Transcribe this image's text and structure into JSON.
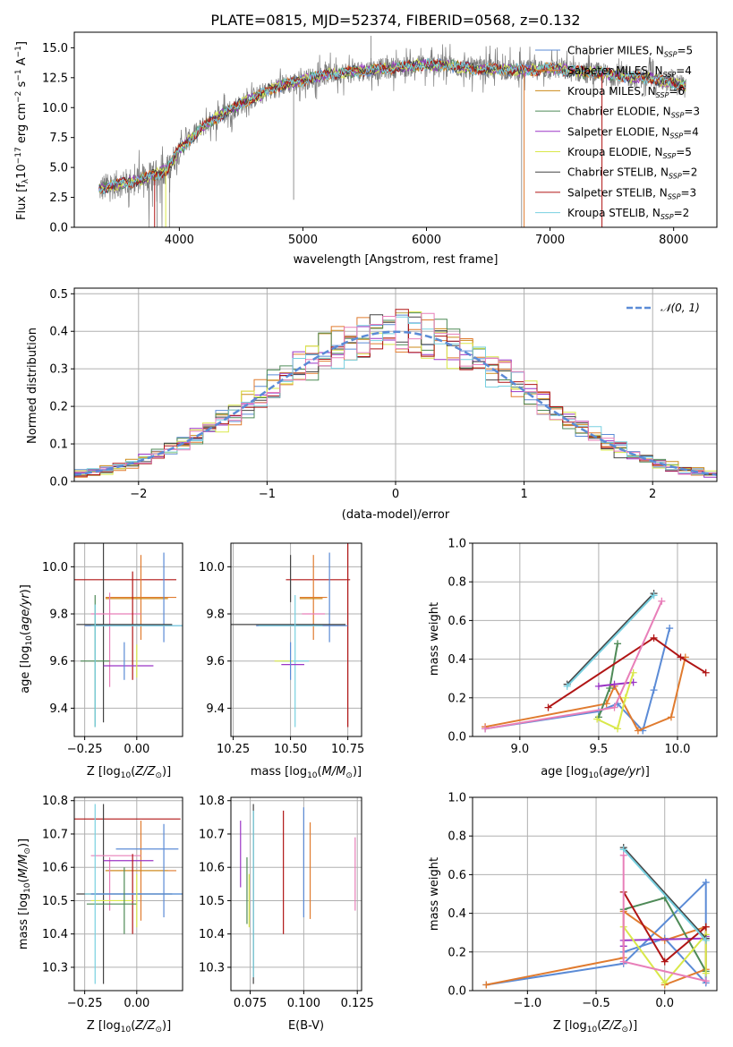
{
  "colors": {
    "Chabrier MILES": "#5b8bd6",
    "Salpeter MILES": "#e07b2f",
    "Kroupa MILES": "#cc8a1a",
    "Chabrier ELODIE": "#4e8a57",
    "Salpeter ELODIE": "#9b35c5",
    "Kroupa ELODIE": "#d9e84a",
    "Chabrier STELIB": "#444444",
    "Salpeter STELIB": "#b01515",
    "Kroupa STELIB": "#78d0e0",
    "pink": "#e87fb9",
    "gaussian": "#5b8bd6"
  },
  "chart_data": [
    {
      "type": "line",
      "title": "PLATE=0815, MJD=52374, FIBERID=0568, z=0.132",
      "xlabel": "wavelength [Angstrom, rest frame]",
      "ylabel": "Flux [fλ10⁻¹⁷ erg cm⁻² s⁻¹ A⁻¹]",
      "xlim": [
        3150,
        8350
      ],
      "ylim": [
        0,
        16.3
      ],
      "xticks": [
        4000,
        5000,
        6000,
        7000,
        8000
      ],
      "yticks": [
        0.0,
        2.5,
        5.0,
        7.5,
        10.0,
        12.5,
        15.0
      ],
      "spectrum_envelope": {
        "x": [
          3350,
          3500,
          3700,
          3900,
          4000,
          4200,
          4400,
          4600,
          4800,
          5000,
          5200,
          5400,
          5600,
          5800,
          6000,
          6200,
          6400,
          6600,
          6800,
          7000,
          7200,
          7400,
          7600,
          7800,
          8000,
          8100
        ],
        "y": [
          3.2,
          3.6,
          4.0,
          4.8,
          6.5,
          8.5,
          9.8,
          10.8,
          11.8,
          12.3,
          12.8,
          13.0,
          13.2,
          13.4,
          13.6,
          13.5,
          13.2,
          13.2,
          13.1,
          13.3,
          13.0,
          12.9,
          12.6,
          12.5,
          12.0,
          11.8
        ]
      },
      "legend": [
        "Chabrier MILES, N_SSP=5",
        "Salpeter MILES, N_SSP=4",
        "Kroupa MILES, N_SSP=6",
        "Chabrier ELODIE, N_SSP=3",
        "Salpeter ELODIE, N_SSP=4",
        "Kroupa ELODIE, N_SSP=5",
        "Chabrier STELIB, N_SSP=2",
        "Salpeter STELIB, N_SSP=3",
        "Kroupa STELIB, N_SSP=2"
      ],
      "legend_placement": "right",
      "grid": false
    },
    {
      "type": "line",
      "xlabel": "(data-model)/error",
      "ylabel": "Normed distribution",
      "xlim": [
        -2.5,
        2.5
      ],
      "ylim": [
        0,
        0.515
      ],
      "xticks": [
        -2,
        -1,
        0,
        1,
        2
      ],
      "yticks": [
        0.0,
        0.1,
        0.2,
        0.3,
        0.4,
        0.5
      ],
      "grid": true,
      "legend": [
        "𝒩(0, 1)"
      ],
      "legend_placement": "top-right",
      "bin_width": 0.1
    },
    {
      "type": "scatter",
      "xlabel": "Z [log₁₀(Z/Z⊙)]",
      "ylabel": "age  [log₁₀(age/yr)]",
      "xlim": [
        -0.3,
        0.22
      ],
      "ylim": [
        9.28,
        10.1
      ],
      "xticks": [
        -0.25,
        0.0
      ],
      "yticks": [
        9.4,
        9.6,
        9.8,
        10.0
      ],
      "grid": true
    },
    {
      "type": "scatter",
      "xlabel": "mass [log₁₀(M/M⊙)]",
      "xlim": [
        10.24,
        10.81
      ],
      "ylim": [
        9.28,
        10.1
      ],
      "xticks": [
        10.25,
        10.5,
        10.75
      ],
      "yticks": [
        9.4,
        9.6,
        9.8,
        10.0
      ],
      "grid": true
    },
    {
      "type": "line",
      "xlabel": "age  [log₁₀(age/yr)]",
      "ylabel": "mass weight",
      "xlim": [
        8.7,
        10.25
      ],
      "ylim": [
        0.0,
        1.0
      ],
      "xticks": [
        9.0,
        9.5,
        10.0
      ],
      "yticks": [
        0.0,
        0.2,
        0.4,
        0.6,
        0.8,
        1.0
      ],
      "grid": true
    },
    {
      "type": "scatter",
      "xlabel": "Z [log₁₀(Z/Z⊙)]",
      "ylabel": "mass [log₁₀(M/M⊙)]",
      "xlim": [
        -0.3,
        0.22
      ],
      "ylim": [
        10.23,
        10.81
      ],
      "xticks": [
        -0.25,
        0.0
      ],
      "yticks": [
        10.3,
        10.4,
        10.5,
        10.6,
        10.7,
        10.8
      ],
      "grid": true
    },
    {
      "type": "scatter",
      "xlabel": "E(B-V)",
      "xlim": [
        0.066,
        0.127
      ],
      "ylim": [
        10.23,
        10.81
      ],
      "xticks": [
        0.075,
        0.1,
        0.125
      ],
      "yticks": [
        10.3,
        10.4,
        10.5,
        10.6,
        10.7,
        10.8
      ],
      "grid": true
    },
    {
      "type": "line",
      "xlabel": "Z [log₁₀(Z/Z⊙)]",
      "ylabel": "mass weight",
      "xlim": [
        -1.4,
        0.38
      ],
      "ylim": [
        0.0,
        1.0
      ],
      "xticks": [
        -1.0,
        -0.5,
        0.0
      ],
      "yticks": [
        0.0,
        0.2,
        0.4,
        0.6,
        0.8,
        1.0
      ],
      "grid": true
    }
  ]
}
